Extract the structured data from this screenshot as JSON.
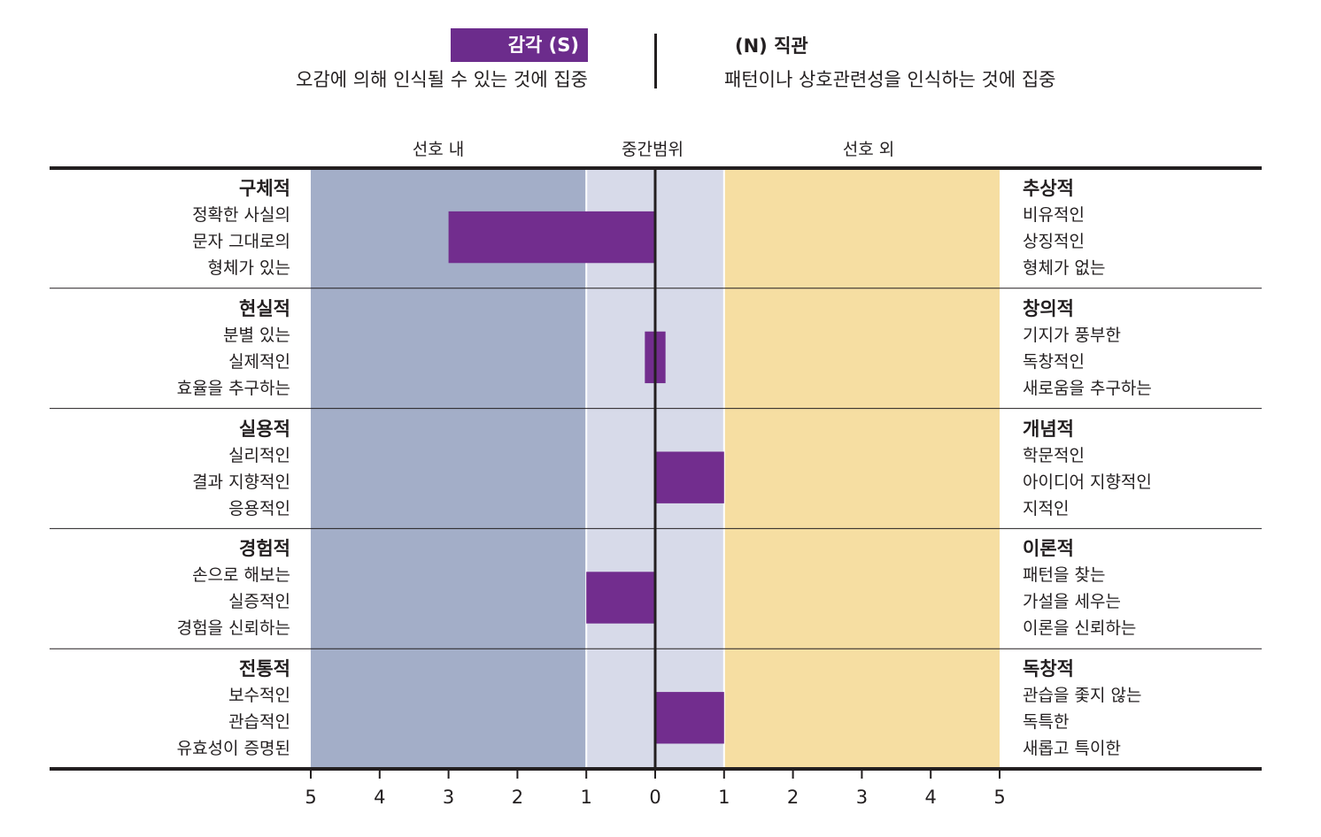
{
  "header": {
    "left_title": "감각 (S)",
    "left_desc": "오감에 의해 인식될 수 있는 것에 집중",
    "right_title": "(N) 직관",
    "right_desc": "패턴이나 상호관련성을 인식하는 것에 집중"
  },
  "bands": {
    "left_label": "선호 내",
    "mid_label": "중간범위",
    "right_label": "선호 외"
  },
  "colors": {
    "bar": "#722d8e",
    "left_band": "#a3aec8",
    "mid_band": "#d7dae9",
    "right_band": "#f6dea2",
    "badge": "#6c2c8c"
  },
  "chart_data": {
    "type": "bar",
    "orientation": "horizontal-diverging",
    "x_ticks": [
      "5",
      "4",
      "3",
      "2",
      "1",
      "0",
      "1",
      "2",
      "3",
      "4",
      "5"
    ],
    "xlim": [
      -5,
      5
    ],
    "categories": [
      {
        "left": {
          "head": "구체적",
          "lines": [
            "정확한 사실의",
            "문자 그대로의",
            "형체가 있는"
          ]
        },
        "right": {
          "head": "추상적",
          "lines": [
            "비유적인",
            "상징적인",
            "형체가 없는"
          ]
        },
        "value": -3.0
      },
      {
        "left": {
          "head": "현실적",
          "lines": [
            "분별 있는",
            "실제적인",
            "효율을 추구하는"
          ]
        },
        "right": {
          "head": "창의적",
          "lines": [
            "기지가 풍부한",
            "독창적인",
            "새로움을 추구하는"
          ]
        },
        "value": 0.3,
        "value_from": -0.15
      },
      {
        "left": {
          "head": "실용적",
          "lines": [
            "실리적인",
            "결과 지향적인",
            "응용적인"
          ]
        },
        "right": {
          "head": "개념적",
          "lines": [
            "학문적인",
            "아이디어 지향적인",
            "지적인"
          ]
        },
        "value": 1.0
      },
      {
        "left": {
          "head": "경험적",
          "lines": [
            "손으로 해보는",
            "실증적인",
            "경험을 신뢰하는"
          ]
        },
        "right": {
          "head": "이론적",
          "lines": [
            "패턴을 찾는",
            "가설을 세우는",
            "이론을 신뢰하는"
          ]
        },
        "value": -1.0
      },
      {
        "left": {
          "head": "전통적",
          "lines": [
            "보수적인",
            "관습적인",
            "유효성이 증명된"
          ]
        },
        "right": {
          "head": "독창적",
          "lines": [
            "관습을 좇지 않는",
            "독특한",
            "새롭고 특이한"
          ]
        },
        "value": 1.0
      }
    ]
  }
}
